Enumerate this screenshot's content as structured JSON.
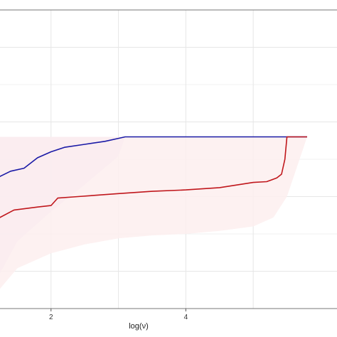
{
  "chart_data": {
    "type": "line",
    "xlabel": "log(ν)",
    "ylabel": "",
    "xlim": [
      0.8,
      5.8
    ],
    "ylim": [
      -0.85,
      1.15
    ],
    "xticks": [
      2,
      4
    ],
    "xtick_labels": [
      "2",
      "4"
    ],
    "grid": true,
    "legend": "none",
    "series": [
      {
        "color": "#1a1aa6",
        "x": [
          0.8,
          0.9,
          0.93,
          0.98,
          1.03,
          1.08,
          1.12,
          1.18,
          1.22,
          1.4,
          1.6,
          1.8,
          2.0,
          2.2,
          2.5,
          2.8,
          3.0,
          3.1,
          5.8
        ],
        "y": [
          -0.75,
          -0.72,
          -0.61,
          -0.56,
          -0.33,
          -0.21,
          -0.05,
          0.0,
          0.03,
          0.07,
          0.09,
          0.16,
          0.2,
          0.23,
          0.25,
          0.27,
          0.29,
          0.3,
          0.3
        ]
      },
      {
        "color": "#c0171c",
        "x": [
          0.8,
          0.95,
          1.0,
          1.06,
          1.15,
          1.2,
          1.45,
          1.8,
          2.0,
          2.1,
          2.4,
          3.0,
          3.5,
          4.0,
          4.5,
          5.0,
          5.2,
          5.35,
          5.42,
          5.47,
          5.5,
          5.8
        ],
        "y": [
          -0.8,
          -0.7,
          -0.66,
          -0.59,
          -0.38,
          -0.25,
          -0.19,
          -0.17,
          -0.16,
          -0.11,
          -0.1,
          -0.08,
          -0.065,
          -0.055,
          -0.04,
          -0.005,
          0.0,
          0.025,
          0.05,
          0.15,
          0.3,
          0.3
        ]
      }
    ],
    "bands": [
      {
        "fill": "#ebe1f4",
        "x": [
          0.8,
          1.0,
          1.2,
          1.5,
          2.0,
          2.5,
          3.0,
          3.1,
          5.8
        ],
        "upper": [
          0.3,
          0.3,
          0.3,
          0.3,
          0.3,
          0.3,
          0.3,
          0.3,
          0.3
        ],
        "lower": [
          -0.84,
          -0.8,
          -0.65,
          -0.4,
          -0.2,
          -0.02,
          0.17,
          0.3,
          0.3
        ]
      },
      {
        "fill": "#fdeeee",
        "x": [
          0.8,
          1.0,
          1.2,
          1.5,
          2.0,
          2.5,
          3.0,
          3.5,
          4.0,
          4.5,
          5.0,
          5.3,
          5.5,
          5.8
        ],
        "upper": [
          0.3,
          0.3,
          0.3,
          0.3,
          0.3,
          0.3,
          0.3,
          0.3,
          0.3,
          0.3,
          0.3,
          0.3,
          0.3,
          0.3
        ],
        "lower": [
          -0.85,
          -0.85,
          -0.74,
          -0.58,
          -0.48,
          -0.42,
          -0.38,
          -0.36,
          -0.35,
          -0.33,
          -0.3,
          -0.24,
          -0.1,
          0.3
        ]
      }
    ]
  }
}
